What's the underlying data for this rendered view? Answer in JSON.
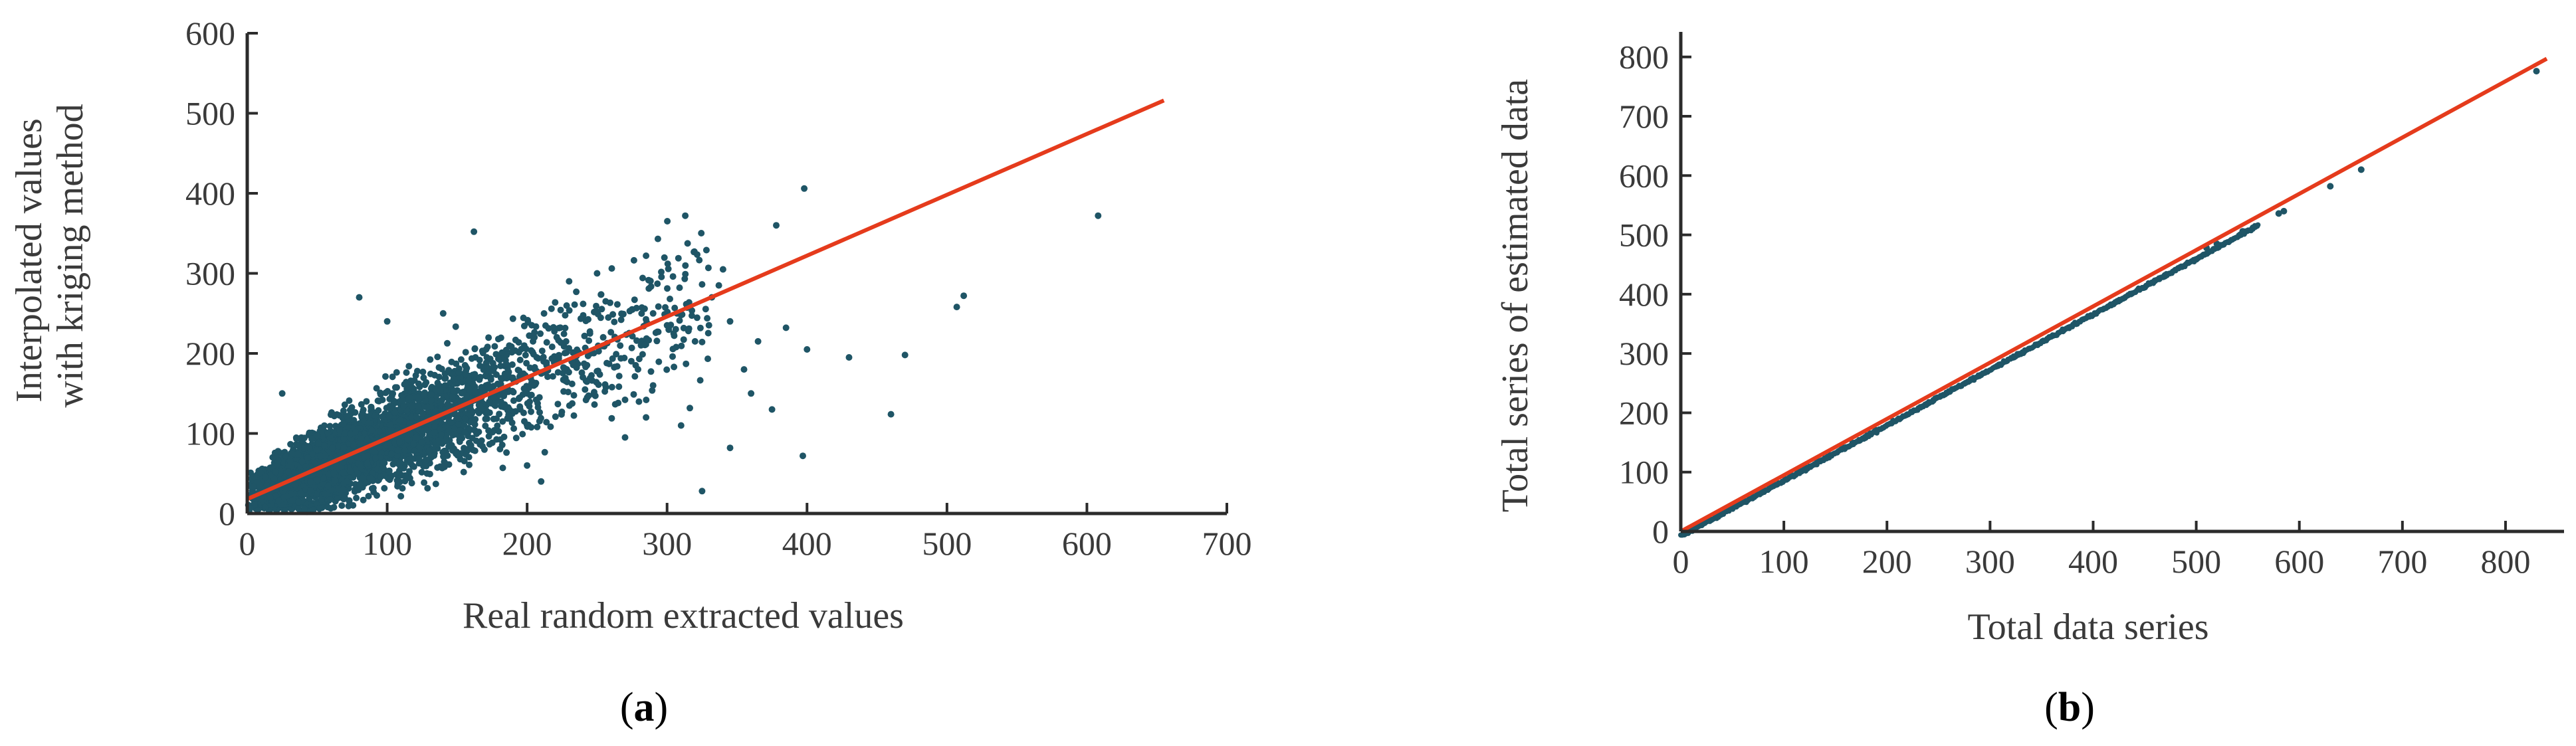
{
  "colors": {
    "points": "#1f5566",
    "fit_line": "#e53b1c",
    "axis": "#2b2b2b",
    "text": "#3a3a3a"
  },
  "chart_data": [
    {
      "type": "scatter",
      "panel": "a",
      "panel_label": "a",
      "title": "",
      "xlabel": "Real random extracted values",
      "ylabel_lines": [
        "Interpolated values",
        "with kriging method"
      ],
      "xlim": [
        0,
        700
      ],
      "ylim": [
        0,
        600
      ],
      "xticks": [
        0,
        100,
        200,
        300,
        400,
        500,
        600,
        700
      ],
      "yticks": [
        0,
        100,
        200,
        300,
        400,
        500,
        600
      ],
      "fit_line": {
        "x": [
          0,
          655
        ],
        "y": [
          18,
          516
        ]
      },
      "point_cloud": {
        "n": 4200,
        "x_range": [
          0,
          330
        ],
        "slope": 0.76,
        "intercept": 18,
        "spread": 26
      },
      "outliers": [
        {
          "x": 162,
          "y": 352
        },
        {
          "x": 313,
          "y": 372
        },
        {
          "x": 378,
          "y": 360
        },
        {
          "x": 398,
          "y": 406
        },
        {
          "x": 608,
          "y": 372
        },
        {
          "x": 512,
          "y": 272
        },
        {
          "x": 507,
          "y": 258
        },
        {
          "x": 470,
          "y": 198
        },
        {
          "x": 460,
          "y": 124
        },
        {
          "x": 397,
          "y": 72
        },
        {
          "x": 345,
          "y": 82
        },
        {
          "x": 325,
          "y": 28
        },
        {
          "x": 285,
          "y": 322
        },
        {
          "x": 340,
          "y": 305
        },
        {
          "x": 337,
          "y": 285
        },
        {
          "x": 332,
          "y": 270
        },
        {
          "x": 290,
          "y": 250
        },
        {
          "x": 300,
          "y": 235
        },
        {
          "x": 320,
          "y": 215
        },
        {
          "x": 310,
          "y": 248
        },
        {
          "x": 355,
          "y": 180
        },
        {
          "x": 360,
          "y": 150
        },
        {
          "x": 375,
          "y": 130
        },
        {
          "x": 365,
          "y": 215
        },
        {
          "x": 400,
          "y": 205
        },
        {
          "x": 430,
          "y": 195
        },
        {
          "x": 285,
          "y": 120
        },
        {
          "x": 270,
          "y": 95
        },
        {
          "x": 290,
          "y": 160
        },
        {
          "x": 310,
          "y": 110
        },
        {
          "x": 230,
          "y": 290
        },
        {
          "x": 250,
          "y": 300
        },
        {
          "x": 80,
          "y": 270
        },
        {
          "x": 100,
          "y": 240
        },
        {
          "x": 140,
          "y": 250
        },
        {
          "x": 25,
          "y": 150
        },
        {
          "x": 200,
          "y": 60
        },
        {
          "x": 210,
          "y": 40
        },
        {
          "x": 345,
          "y": 240
        },
        {
          "x": 385,
          "y": 232
        }
      ]
    },
    {
      "type": "scatter",
      "panel": "b",
      "panel_label": "b",
      "title": "",
      "xlabel": "Total data series",
      "ylabel": "Total series of estimated data",
      "xlim": [
        0,
        840
      ],
      "ylim": [
        0,
        840
      ],
      "xticks": [
        0,
        100,
        200,
        300,
        400,
        500,
        600,
        700,
        800
      ],
      "yticks": [
        0,
        100,
        200,
        300,
        400,
        500,
        600,
        700,
        800
      ],
      "fit_line": {
        "x": [
          0,
          840
        ],
        "y": [
          0,
          797
        ]
      },
      "point_series": {
        "x_range": [
          0,
          840
        ],
        "slope": 0.935,
        "intercept": -8,
        "dense_until": 560
      },
      "points": [
        {
          "x": 580,
          "y": 536
        },
        {
          "x": 585,
          "y": 540
        },
        {
          "x": 630,
          "y": 582
        },
        {
          "x": 660,
          "y": 610
        },
        {
          "x": 830,
          "y": 776
        },
        {
          "x": 555,
          "y": 512
        },
        {
          "x": 545,
          "y": 506
        },
        {
          "x": 520,
          "y": 485
        },
        {
          "x": 510,
          "y": 478
        }
      ]
    }
  ]
}
